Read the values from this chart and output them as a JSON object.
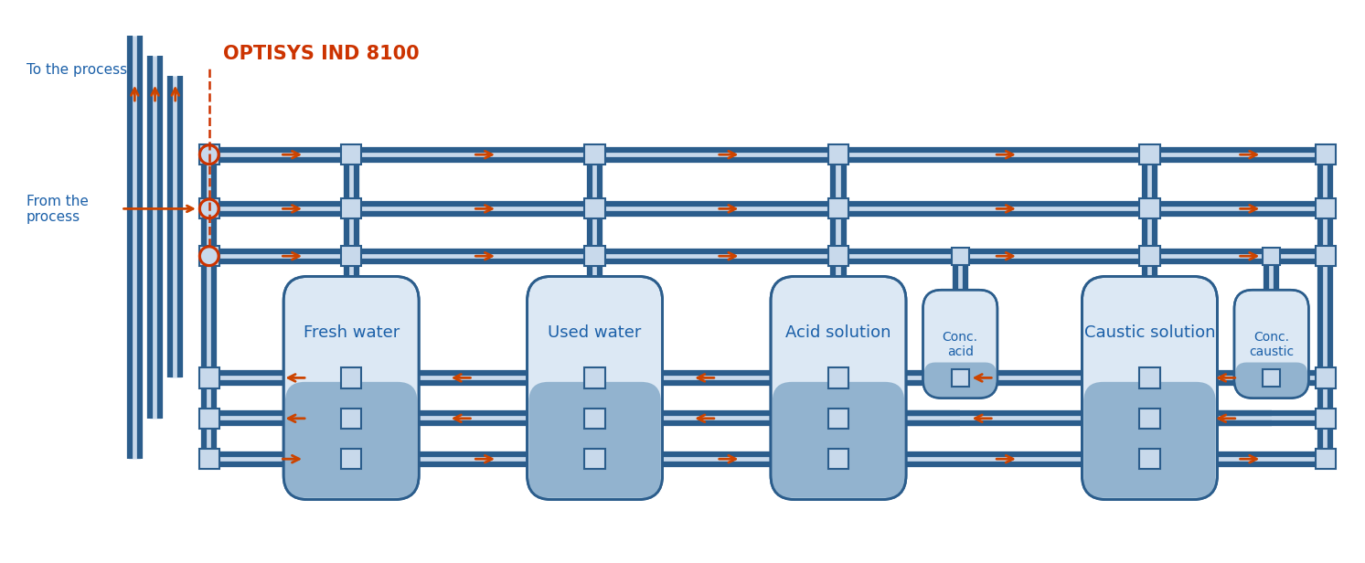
{
  "bg": "#ffffff",
  "pc": "#2b5d8c",
  "pl": "#c8d9eb",
  "ac": "#cc4400",
  "lc": "#1a5fa8",
  "oc": "#cc3300",
  "tf": "#dce8f4",
  "lf": "#8aaecb",
  "figw": 74.68,
  "figh": 30.84,
  "dpi": 100,
  "title_label": "OPTISYS IND 8100",
  "from_label": "From the\nprocess",
  "to_label": "To the process",
  "tank_labels": [
    "Fresh water",
    "Used water",
    "Acid solution",
    "Caustic solution"
  ],
  "small_tank_labels": [
    "Conc.\nacid",
    "Conc.\ncaustic"
  ]
}
